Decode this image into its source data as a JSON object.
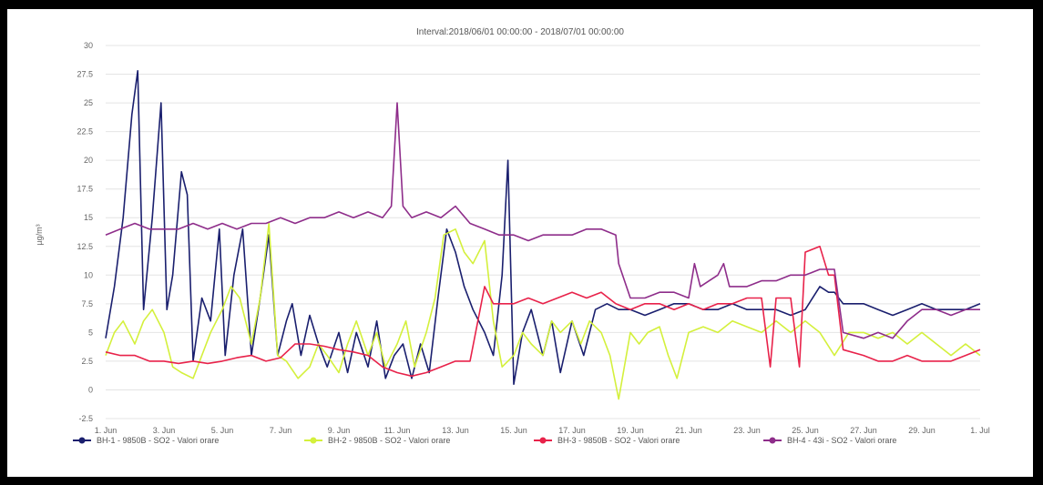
{
  "chart_data": {
    "type": "line",
    "title": "Interval:2018/06/01 00:00:00 - 2018/07/01 00:00:00",
    "ylabel": "µg/m³",
    "xlabel": "",
    "ylim": [
      -2.5,
      30
    ],
    "yticks": [
      "-2.5",
      "0",
      "2.5",
      "5",
      "7.5",
      "10",
      "12.5",
      "15",
      "17.5",
      "20",
      "22.5",
      "25",
      "27.5",
      "30"
    ],
    "xlim": [
      1,
      31
    ],
    "xticks": [
      {
        "day": 1,
        "label": "1. Jun"
      },
      {
        "day": 3,
        "label": "3. Jun"
      },
      {
        "day": 5,
        "label": "5. Jun"
      },
      {
        "day": 7,
        "label": "7. Jun"
      },
      {
        "day": 9,
        "label": "9. Jun"
      },
      {
        "day": 11,
        "label": "11. Jun"
      },
      {
        "day": 13,
        "label": "13. Jun"
      },
      {
        "day": 15,
        "label": "15. Jun"
      },
      {
        "day": 17,
        "label": "17. Jun"
      },
      {
        "day": 19,
        "label": "19. Jun"
      },
      {
        "day": 21,
        "label": "21. Jun"
      },
      {
        "day": 23,
        "label": "23. Jun"
      },
      {
        "day": 25,
        "label": "25. Jun"
      },
      {
        "day": 27,
        "label": "27. Jun"
      },
      {
        "day": 29,
        "label": "29. Jun"
      },
      {
        "day": 31,
        "label": "1. Jul"
      }
    ],
    "grid": true,
    "legend_position": "bottom",
    "series": [
      {
        "name": "BH-1 - 9850B - SO2 - Valori orare",
        "color": "#1a1f6e",
        "points": [
          [
            1.0,
            4.5
          ],
          [
            1.3,
            9
          ],
          [
            1.6,
            15
          ],
          [
            1.9,
            24
          ],
          [
            2.1,
            27.8
          ],
          [
            2.3,
            7
          ],
          [
            2.6,
            15
          ],
          [
            2.9,
            25
          ],
          [
            3.1,
            7
          ],
          [
            3.3,
            10
          ],
          [
            3.6,
            19
          ],
          [
            3.8,
            17
          ],
          [
            4.0,
            2.5
          ],
          [
            4.3,
            8
          ],
          [
            4.6,
            6
          ],
          [
            4.9,
            14
          ],
          [
            5.1,
            3
          ],
          [
            5.4,
            10
          ],
          [
            5.7,
            14
          ],
          [
            6.0,
            3
          ],
          [
            6.3,
            8
          ],
          [
            6.6,
            13.5
          ],
          [
            6.9,
            3
          ],
          [
            7.2,
            6
          ],
          [
            7.4,
            7.5
          ],
          [
            7.7,
            3
          ],
          [
            8.0,
            6.5
          ],
          [
            8.3,
            4
          ],
          [
            8.6,
            2
          ],
          [
            9.0,
            5
          ],
          [
            9.3,
            1.5
          ],
          [
            9.6,
            5
          ],
          [
            10.0,
            2
          ],
          [
            10.3,
            6
          ],
          [
            10.6,
            1
          ],
          [
            10.9,
            3
          ],
          [
            11.2,
            4
          ],
          [
            11.5,
            1
          ],
          [
            11.8,
            4
          ],
          [
            12.1,
            1.5
          ],
          [
            12.4,
            8
          ],
          [
            12.7,
            14
          ],
          [
            13.0,
            12
          ],
          [
            13.3,
            9
          ],
          [
            13.6,
            7
          ],
          [
            14.0,
            5
          ],
          [
            14.3,
            3
          ],
          [
            14.6,
            10
          ],
          [
            14.8,
            20
          ],
          [
            15.0,
            0.5
          ],
          [
            15.3,
            5
          ],
          [
            15.6,
            7
          ],
          [
            16.0,
            3
          ],
          [
            16.3,
            6
          ],
          [
            16.6,
            1.5
          ],
          [
            17.0,
            6
          ],
          [
            17.4,
            3
          ],
          [
            17.8,
            7
          ],
          [
            18.2,
            7.5
          ],
          [
            18.6,
            7
          ],
          [
            19.0,
            7
          ],
          [
            19.5,
            6.5
          ],
          [
            20.0,
            7
          ],
          [
            20.5,
            7.5
          ],
          [
            21.0,
            7.5
          ],
          [
            21.5,
            7
          ],
          [
            22.0,
            7
          ],
          [
            22.5,
            7.5
          ],
          [
            23.0,
            7
          ],
          [
            23.5,
            7
          ],
          [
            24.0,
            7
          ],
          [
            24.5,
            6.5
          ],
          [
            25.0,
            7
          ],
          [
            25.5,
            9
          ],
          [
            25.8,
            8.5
          ],
          [
            26.0,
            8.5
          ],
          [
            26.3,
            7.5
          ],
          [
            27.0,
            7.5
          ],
          [
            27.5,
            7
          ],
          [
            28.0,
            6.5
          ],
          [
            28.5,
            7
          ],
          [
            29.0,
            7.5
          ],
          [
            29.5,
            7
          ],
          [
            30.0,
            7
          ],
          [
            30.5,
            7
          ],
          [
            31.0,
            7.5
          ]
        ]
      },
      {
        "name": "BH-2 - 9850B - SO2 - Valori orare",
        "color": "#d4f03c",
        "points": [
          [
            1.0,
            3
          ],
          [
            1.3,
            5
          ],
          [
            1.6,
            6
          ],
          [
            2.0,
            4
          ],
          [
            2.3,
            6
          ],
          [
            2.6,
            7
          ],
          [
            3.0,
            5
          ],
          [
            3.3,
            2
          ],
          [
            3.6,
            1.5
          ],
          [
            4.0,
            1
          ],
          [
            4.3,
            3
          ],
          [
            4.6,
            5
          ],
          [
            5.0,
            7
          ],
          [
            5.3,
            9
          ],
          [
            5.6,
            8
          ],
          [
            6.0,
            4
          ],
          [
            6.3,
            8
          ],
          [
            6.6,
            14.5
          ],
          [
            6.9,
            3
          ],
          [
            7.2,
            2.5
          ],
          [
            7.6,
            1
          ],
          [
            8.0,
            2
          ],
          [
            8.3,
            4
          ],
          [
            8.6,
            3
          ],
          [
            9.0,
            1.5
          ],
          [
            9.3,
            4
          ],
          [
            9.6,
            6
          ],
          [
            10.0,
            3
          ],
          [
            10.3,
            5
          ],
          [
            10.6,
            2
          ],
          [
            11.0,
            4
          ],
          [
            11.3,
            6
          ],
          [
            11.6,
            2
          ],
          [
            12.0,
            5
          ],
          [
            12.3,
            8
          ],
          [
            12.6,
            13.5
          ],
          [
            13.0,
            14
          ],
          [
            13.3,
            12
          ],
          [
            13.6,
            11
          ],
          [
            14.0,
            13
          ],
          [
            14.3,
            6
          ],
          [
            14.6,
            2
          ],
          [
            15.0,
            3
          ],
          [
            15.3,
            5
          ],
          [
            15.6,
            4
          ],
          [
            16.0,
            3
          ],
          [
            16.3,
            6
          ],
          [
            16.6,
            5
          ],
          [
            17.0,
            6
          ],
          [
            17.3,
            4
          ],
          [
            17.6,
            6
          ],
          [
            18.0,
            5
          ],
          [
            18.3,
            3
          ],
          [
            18.6,
            -0.8
          ],
          [
            19.0,
            5
          ],
          [
            19.3,
            4
          ],
          [
            19.6,
            5
          ],
          [
            20.0,
            5.5
          ],
          [
            20.3,
            3
          ],
          [
            20.6,
            1
          ],
          [
            21.0,
            5
          ],
          [
            21.5,
            5.5
          ],
          [
            22.0,
            5
          ],
          [
            22.5,
            6
          ],
          [
            23.0,
            5.5
          ],
          [
            23.5,
            5
          ],
          [
            24.0,
            6
          ],
          [
            24.5,
            5
          ],
          [
            25.0,
            6
          ],
          [
            25.5,
            5
          ],
          [
            26.0,
            3
          ],
          [
            26.5,
            5
          ],
          [
            27.0,
            5
          ],
          [
            27.5,
            4.5
          ],
          [
            28.0,
            5
          ],
          [
            28.5,
            4
          ],
          [
            29.0,
            5
          ],
          [
            29.5,
            4
          ],
          [
            30.0,
            3
          ],
          [
            30.5,
            4
          ],
          [
            31.0,
            3
          ]
        ]
      },
      {
        "name": "BH-3 - 9850B - SO2 - Valori orare",
        "color": "#e8224a",
        "points": [
          [
            1.0,
            3.3
          ],
          [
            1.5,
            3
          ],
          [
            2.0,
            3
          ],
          [
            2.5,
            2.5
          ],
          [
            3.0,
            2.5
          ],
          [
            3.5,
            2.3
          ],
          [
            4.0,
            2.5
          ],
          [
            4.5,
            2.3
          ],
          [
            5.0,
            2.5
          ],
          [
            5.5,
            2.8
          ],
          [
            6.0,
            3
          ],
          [
            6.5,
            2.5
          ],
          [
            7.0,
            2.8
          ],
          [
            7.5,
            4
          ],
          [
            8.0,
            4
          ],
          [
            8.5,
            3.8
          ],
          [
            9.0,
            3.5
          ],
          [
            9.5,
            3.3
          ],
          [
            10.0,
            3
          ],
          [
            10.5,
            2
          ],
          [
            11.0,
            1.5
          ],
          [
            11.5,
            1.2
          ],
          [
            12.0,
            1.5
          ],
          [
            12.5,
            2
          ],
          [
            13.0,
            2.5
          ],
          [
            13.5,
            2.5
          ],
          [
            14.0,
            9
          ],
          [
            14.3,
            7.5
          ],
          [
            14.6,
            7.5
          ],
          [
            15.0,
            7.5
          ],
          [
            15.5,
            8
          ],
          [
            16.0,
            7.5
          ],
          [
            16.5,
            8
          ],
          [
            17.0,
            8.5
          ],
          [
            17.5,
            8
          ],
          [
            18.0,
            8.5
          ],
          [
            18.5,
            7.5
          ],
          [
            19.0,
            7
          ],
          [
            19.5,
            7.5
          ],
          [
            20.0,
            7.5
          ],
          [
            20.5,
            7
          ],
          [
            21.0,
            7.5
          ],
          [
            21.5,
            7
          ],
          [
            22.0,
            7.5
          ],
          [
            22.5,
            7.5
          ],
          [
            23.0,
            8
          ],
          [
            23.5,
            8
          ],
          [
            23.8,
            2
          ],
          [
            24.0,
            8
          ],
          [
            24.5,
            8
          ],
          [
            24.8,
            2
          ],
          [
            25.0,
            12
          ],
          [
            25.5,
            12.5
          ],
          [
            25.8,
            10
          ],
          [
            26.0,
            10
          ],
          [
            26.3,
            3.5
          ],
          [
            27.0,
            3
          ],
          [
            27.5,
            2.5
          ],
          [
            28.0,
            2.5
          ],
          [
            28.5,
            3
          ],
          [
            29.0,
            2.5
          ],
          [
            29.5,
            2.5
          ],
          [
            30.0,
            2.5
          ],
          [
            30.5,
            3
          ],
          [
            31.0,
            3.5
          ]
        ]
      },
      {
        "name": "BH-4 - 43i - SO2 - Valori orare",
        "color": "#8e2d8a",
        "points": [
          [
            1.0,
            13.5
          ],
          [
            1.5,
            14
          ],
          [
            2.0,
            14.5
          ],
          [
            2.5,
            14
          ],
          [
            3.0,
            14
          ],
          [
            3.5,
            14
          ],
          [
            4.0,
            14.5
          ],
          [
            4.5,
            14
          ],
          [
            5.0,
            14.5
          ],
          [
            5.5,
            14
          ],
          [
            6.0,
            14.5
          ],
          [
            6.5,
            14.5
          ],
          [
            7.0,
            15
          ],
          [
            7.5,
            14.5
          ],
          [
            8.0,
            15
          ],
          [
            8.5,
            15
          ],
          [
            9.0,
            15.5
          ],
          [
            9.5,
            15
          ],
          [
            10.0,
            15.5
          ],
          [
            10.5,
            15
          ],
          [
            10.8,
            16
          ],
          [
            11.0,
            25
          ],
          [
            11.2,
            16
          ],
          [
            11.5,
            15
          ],
          [
            12.0,
            15.5
          ],
          [
            12.5,
            15
          ],
          [
            13.0,
            16
          ],
          [
            13.5,
            14.5
          ],
          [
            14.0,
            14
          ],
          [
            14.5,
            13.5
          ],
          [
            15.0,
            13.5
          ],
          [
            15.5,
            13
          ],
          [
            16.0,
            13.5
          ],
          [
            16.5,
            13.5
          ],
          [
            17.0,
            13.5
          ],
          [
            17.5,
            14
          ],
          [
            18.0,
            14
          ],
          [
            18.5,
            13.5
          ],
          [
            18.6,
            11
          ],
          [
            19.0,
            8
          ],
          [
            19.5,
            8
          ],
          [
            20.0,
            8.5
          ],
          [
            20.5,
            8.5
          ],
          [
            21.0,
            8
          ],
          [
            21.2,
            11
          ],
          [
            21.4,
            9
          ],
          [
            22.0,
            10
          ],
          [
            22.2,
            11
          ],
          [
            22.4,
            9
          ],
          [
            23.0,
            9
          ],
          [
            23.5,
            9.5
          ],
          [
            24.0,
            9.5
          ],
          [
            24.5,
            10
          ],
          [
            25.0,
            10
          ],
          [
            25.5,
            10.5
          ],
          [
            26.0,
            10.5
          ],
          [
            26.3,
            5
          ],
          [
            27.0,
            4.5
          ],
          [
            27.5,
            5
          ],
          [
            28.0,
            4.5
          ],
          [
            28.5,
            6
          ],
          [
            29.0,
            7
          ],
          [
            29.5,
            7
          ],
          [
            30.0,
            6.5
          ],
          [
            30.5,
            7
          ],
          [
            31.0,
            7
          ]
        ]
      }
    ]
  }
}
